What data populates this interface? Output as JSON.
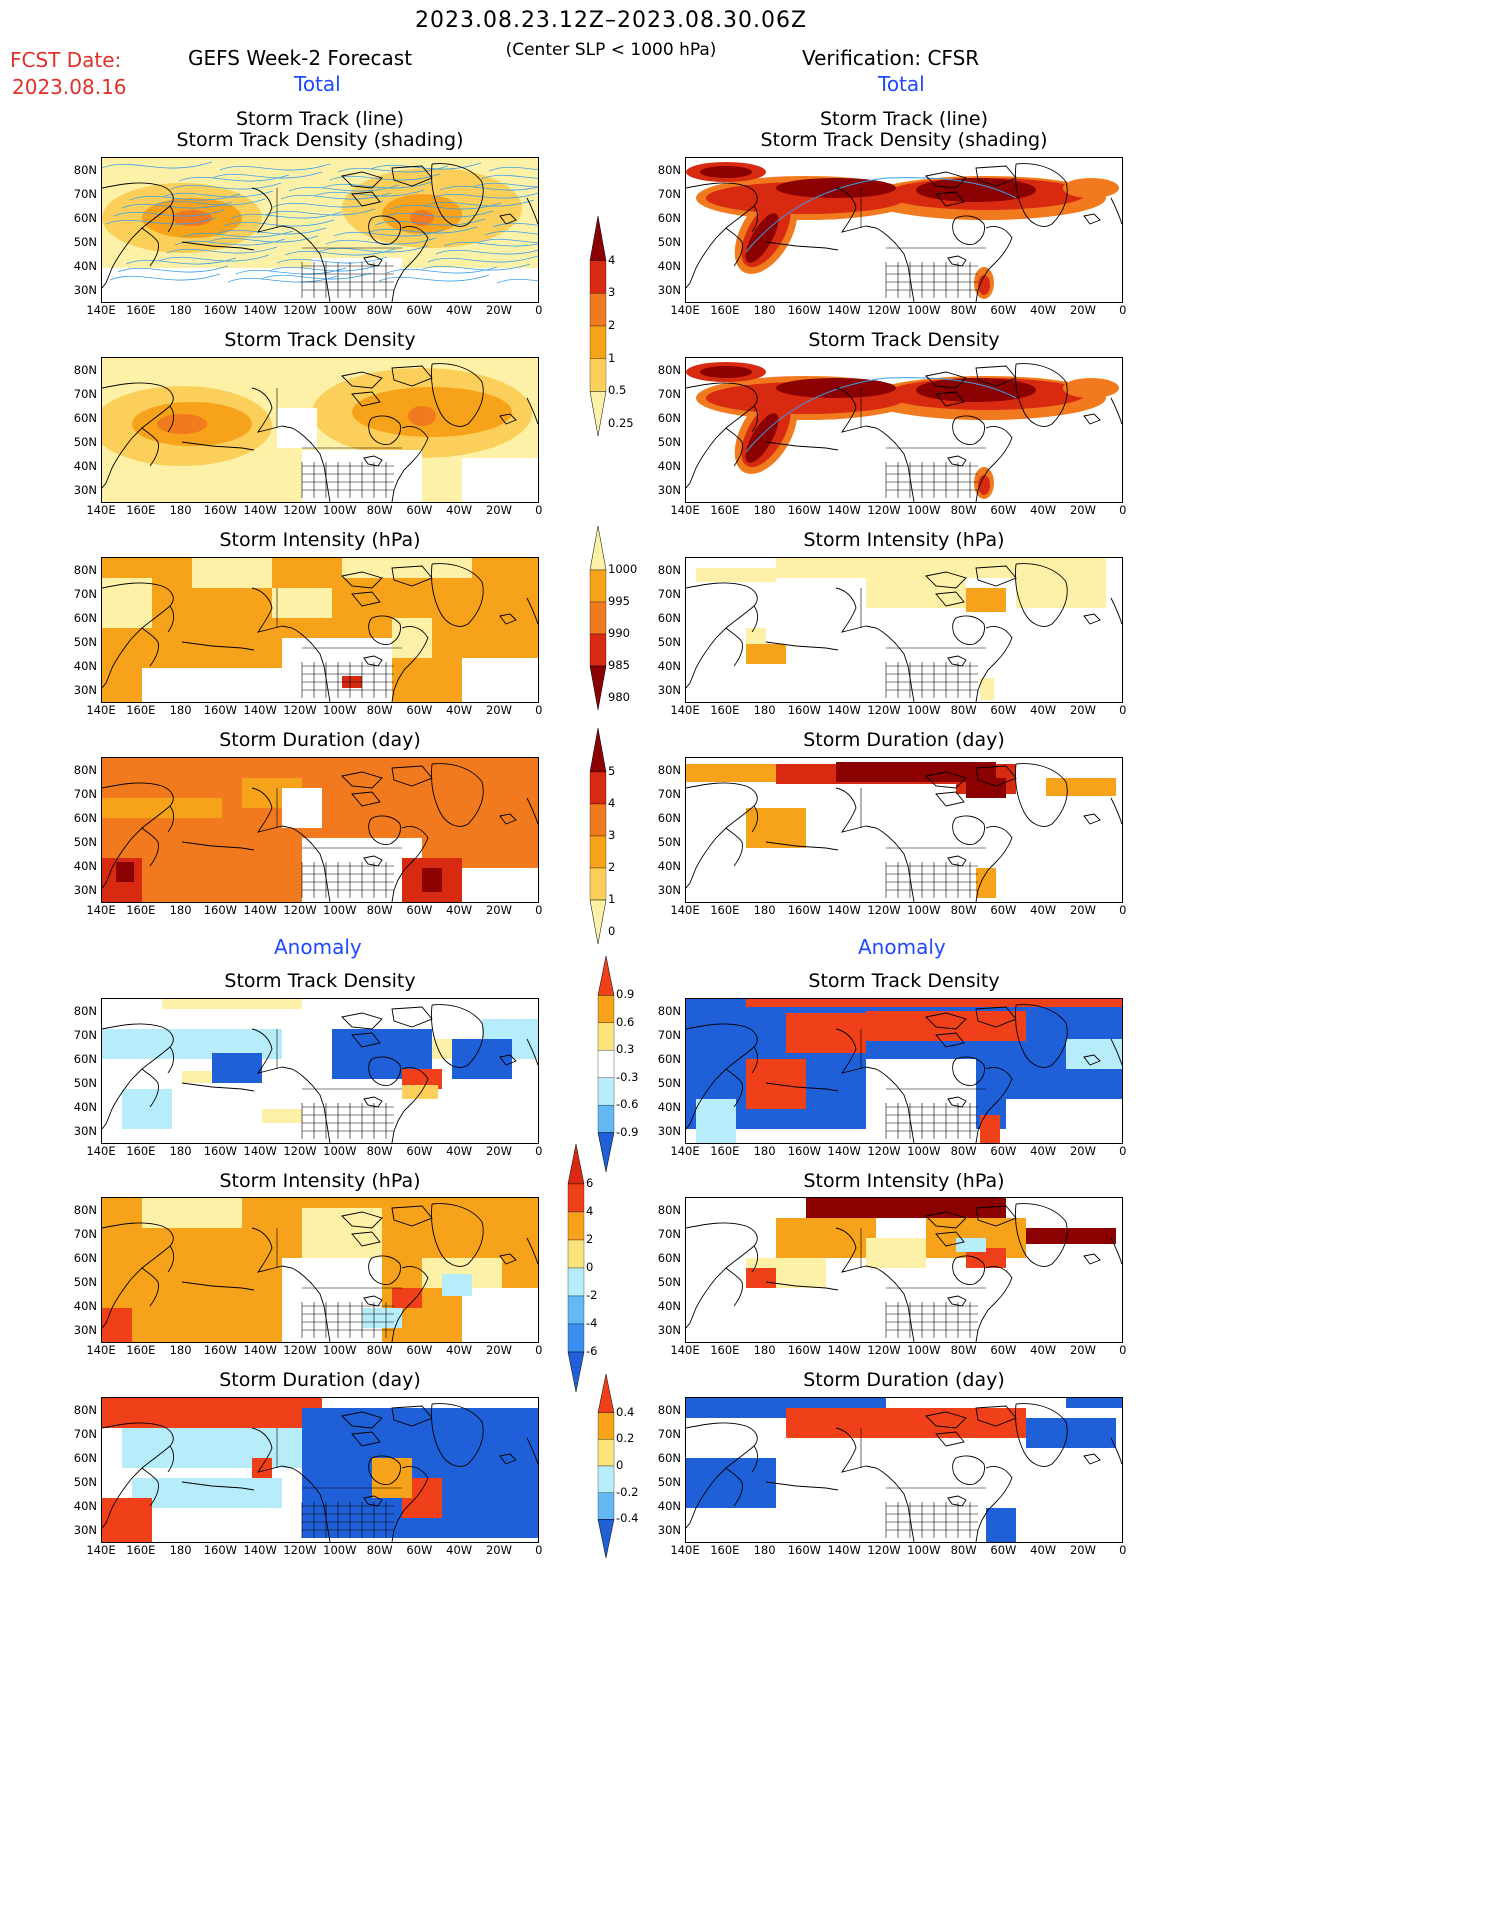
{
  "header": {
    "period": "2023.08.23.12Z–2023.08.30.06Z",
    "criterion": "(Center SLP < 1000 hPa)",
    "fcst_label": "FCST Date:",
    "fcst_date": "2023.08.16",
    "left_title": "GEFS Week-2 Forecast",
    "right_title": "Verification: CFSR",
    "total_label": "Total",
    "anomaly_label": "Anomaly"
  },
  "panel_titles": {
    "track_line": "Storm Track (line)",
    "track_shading": "Storm Track Density (shading)",
    "density": "Storm Track Density",
    "intensity": "Storm Intensity (hPa)",
    "duration": "Storm Duration (day)"
  },
  "axes": {
    "lon_labels": [
      "140E",
      "160E",
      "180",
      "160W",
      "140W",
      "120W",
      "100W",
      "80W",
      "60W",
      "40W",
      "20W",
      "0"
    ],
    "lat_labels": [
      "80N",
      "70N",
      "60N",
      "50N",
      "40N",
      "30N"
    ]
  },
  "colorbars": {
    "density_total": {
      "labels": [
        "4",
        "3",
        "2",
        "1",
        "0.5",
        "0.25"
      ],
      "colors": [
        "#8b0000",
        "#d82a10",
        "#f27a1e",
        "#f7a21b",
        "#fbcf5a",
        "#fdf1a8"
      ]
    },
    "intensity_total": {
      "labels": [
        "1000",
        "995",
        "990",
        "985",
        "980"
      ],
      "colors": [
        "#fdf1a8",
        "#f7a21b",
        "#f27a1e",
        "#d82a10",
        "#8b0000"
      ]
    },
    "duration_total": {
      "labels": [
        "5",
        "4",
        "3",
        "2",
        "1",
        "0"
      ],
      "colors": [
        "#8b0000",
        "#d82a10",
        "#f27a1e",
        "#f7a21b",
        "#fbcf5a",
        "#fdf1a8"
      ]
    },
    "density_anom": {
      "labels": [
        "0.9",
        "0.6",
        "0.3",
        "-0.3",
        "-0.6",
        "-0.9"
      ],
      "colors": [
        "#f0401a",
        "#f7a21b",
        "#fbe27a",
        "#ffffff",
        "#b7ecfb",
        "#64b9f5",
        "#1f5fd8"
      ]
    },
    "intensity_anom": {
      "labels": [
        "6",
        "4",
        "2",
        "0",
        "-2",
        "-4",
        "-6"
      ],
      "colors": [
        "#d82a10",
        "#f0401a",
        "#f7a21b",
        "#fbe27a",
        "#b7ecfb",
        "#64b9f5",
        "#3a8ff0",
        "#1f5fd8"
      ]
    },
    "duration_anom": {
      "labels": [
        "0.4",
        "0.2",
        "0",
        "-0.2",
        "-0.4"
      ],
      "colors": [
        "#f0401a",
        "#f7a21b",
        "#fbe27a",
        "#b7ecfb",
        "#64b9f5",
        "#1f5fd8"
      ]
    }
  },
  "palette": {
    "light_yellow": "#fdf1a8",
    "yellow": "#fbcf5a",
    "light_orange": "#f7a21b",
    "orange": "#f27a1e",
    "red": "#d82a10",
    "dark_red": "#8b0000",
    "anom_red": "#f0401a",
    "anom_blue": "#1f5fd8",
    "light_blue": "#b7ecfb",
    "track_line": "#3aa0e8",
    "header_red": "#e0302a",
    "header_blue": "#1f48ff"
  }
}
